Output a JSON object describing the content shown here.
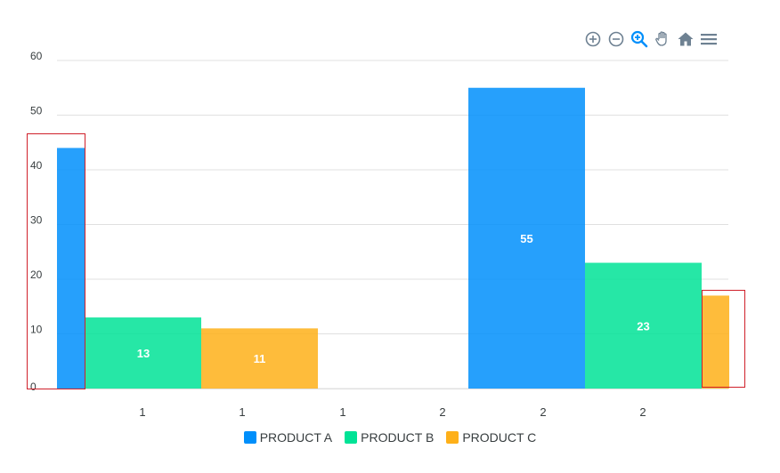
{
  "toolbar": {
    "icons": [
      "zoom-in-icon",
      "zoom-out-icon",
      "zoom-selection-icon",
      "pan-hand-icon",
      "reset-home-icon",
      "menu-icon"
    ],
    "active_icon": "zoom-selection-icon",
    "colors": {
      "default": "#6e8192",
      "active": "#008ffb"
    }
  },
  "chart_data": {
    "type": "bar",
    "categories": [
      "1",
      "1",
      "1",
      "2",
      "2",
      "2"
    ],
    "ylim": [
      0,
      60
    ],
    "yticks": [
      "0",
      "10",
      "20",
      "30",
      "40",
      "50",
      "60"
    ],
    "grid": true,
    "legend_position": "bottom",
    "series": [
      {
        "name": "PRODUCT A",
        "color": "#008ffb",
        "values": [
          44,
          null,
          null,
          null,
          55,
          null
        ]
      },
      {
        "name": "PRODUCT B",
        "color": "#00e396",
        "values": [
          null,
          13,
          null,
          null,
          null,
          23
        ]
      },
      {
        "name": "PRODUCT C",
        "color": "#feb019",
        "values": [
          null,
          null,
          11,
          null,
          null,
          17
        ]
      }
    ],
    "data_labels": [
      {
        "series": 1,
        "index": 1,
        "text": "13"
      },
      {
        "series": 2,
        "index": 2,
        "text": "11"
      },
      {
        "series": 0,
        "index": 4,
        "text": "55"
      },
      {
        "series": 1,
        "index": 5,
        "text": "23"
      }
    ]
  }
}
